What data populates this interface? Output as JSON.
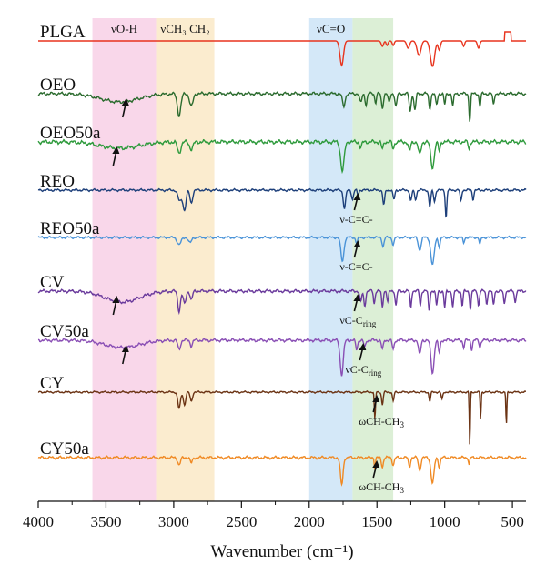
{
  "chart_data": {
    "type": "line",
    "title": "",
    "xlabel": "Wavenumber (cm⁻¹)",
    "ylabel": "",
    "xlim": [
      4000,
      400
    ],
    "x_reversed": true,
    "xticks": [
      "4000",
      "3500",
      "3000",
      "2500",
      "2000",
      "1500",
      "1000",
      "500"
    ],
    "grid": false,
    "bands": [
      {
        "label": "νO-H",
        "from": 3600,
        "to": 3130,
        "color": "#f9d7ea"
      },
      {
        "label": "νCH₃ CH₂",
        "from": 3130,
        "to": 2700,
        "color": "#fbeccf"
      },
      {
        "label": "νC=O",
        "from": 2000,
        "to": 1680,
        "color": "#d4e8f8"
      },
      {
        "label": "",
        "from": 1680,
        "to": 1380,
        "color": "#dcefd6"
      }
    ],
    "series": [
      {
        "name": "PLGA",
        "color": "#e8341e"
      },
      {
        "name": "OEO",
        "color": "#2b6b2e"
      },
      {
        "name": "OEO50a",
        "color": "#2e9a3c"
      },
      {
        "name": "REO",
        "color": "#1d3f7a"
      },
      {
        "name": "REO50a",
        "color": "#4a93d8"
      },
      {
        "name": "CV",
        "color": "#6a3a9c"
      },
      {
        "name": "CV50a",
        "color": "#8a4fb5"
      },
      {
        "name": "CY",
        "color": "#6b3314"
      },
      {
        "name": "CY50a",
        "color": "#f08a24"
      }
    ],
    "annotations": [
      {
        "text": "ν-C=C-",
        "series": "REO",
        "x": 1640
      },
      {
        "text": "ν-C=C-",
        "series": "REO50a",
        "x": 1640
      },
      {
        "text": "νC-C",
        "sub": "ring",
        "series": "CV",
        "x": 1640
      },
      {
        "text": "νC-C",
        "sub": "ring",
        "series": "CV50a",
        "x": 1600
      },
      {
        "text": "ωCH-CH",
        "sub": "3",
        "series": "CY",
        "x": 1500
      },
      {
        "text": "ωCH-CH",
        "sub": "3",
        "series": "CY50a",
        "x": 1500
      }
    ]
  }
}
